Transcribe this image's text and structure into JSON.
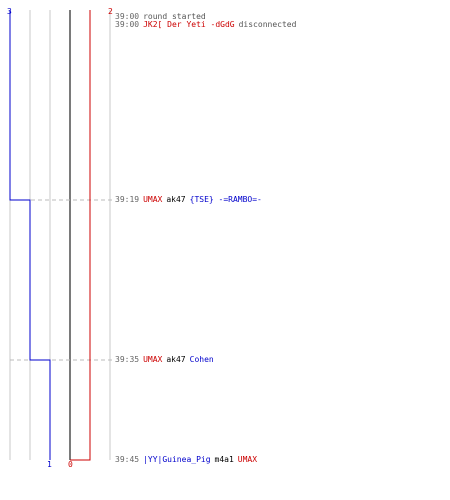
{
  "colors": {
    "team_blue": "#0000cc",
    "team_red": "#cc0000",
    "grid": "#c8c8c8",
    "center_line": "#7a7a7a",
    "event_dash": "#bbbbbb",
    "text_gray": "#555555"
  },
  "graph": {
    "blue_label_start": "3",
    "red_label_start": "2",
    "blue_label_end": "1",
    "red_label_end": "0"
  },
  "chart_data": {
    "type": "line",
    "x": [
      "39:00",
      "39:00",
      "39:19",
      "39:35",
      "39:45"
    ],
    "series": [
      {
        "values": [
          3,
          3,
          2,
          1,
          1
        ]
      },
      {
        "values": [
          2,
          2,
          2,
          2,
          0
        ]
      }
    ]
  },
  "log": [
    {
      "time": "39:00",
      "parts": [
        {
          "text": "round started",
          "style": "sys"
        }
      ]
    },
    {
      "time": "39:00",
      "parts": [
        {
          "text": "JK2[ Der Yeti -dGdG",
          "style": "red"
        },
        {
          "text": "disconnected",
          "style": "sys"
        }
      ]
    },
    {
      "time": "39:19",
      "parts": [
        {
          "text": "UMAX",
          "style": "red"
        },
        {
          "text": "ak47",
          "style": "black"
        },
        {
          "text": "{TSE} -=RAMBO=-",
          "style": "blue"
        }
      ]
    },
    {
      "time": "39:35",
      "parts": [
        {
          "text": "UMAX",
          "style": "red"
        },
        {
          "text": "ak47",
          "style": "black"
        },
        {
          "text": "Cohen",
          "style": "blue"
        }
      ]
    },
    {
      "time": "39:45",
      "parts": [
        {
          "text": "|YY|Guinea_Pig",
          "style": "blue"
        },
        {
          "text": "m4a1",
          "style": "black"
        },
        {
          "text": "UMAX",
          "style": "red"
        }
      ]
    }
  ]
}
